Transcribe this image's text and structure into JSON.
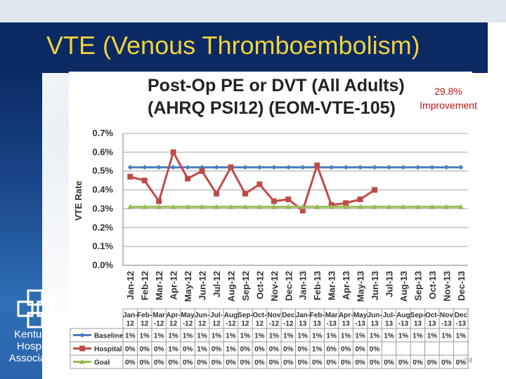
{
  "slide": {
    "title": "VTE (Venous Thromboembolism)",
    "page_number": "24",
    "org_name_lines": [
      "Kentucky",
      "Hospital",
      "Association"
    ],
    "annotation": {
      "line1": "29.8%",
      "line2": "Improvement",
      "color": "#c01515"
    },
    "colors": {
      "title": "#f2d23a",
      "title_bar": "#0b2a63"
    }
  },
  "chart_data": {
    "type": "line",
    "title_lines": [
      "Post-Op PE or DVT (All Adults)",
      "(AHRQ PSI12) (EOM-VTE-105)"
    ],
    "xlabel": "",
    "ylabel": "VTE Rate",
    "ylim": [
      0,
      0.7
    ],
    "y_ticks": [
      "0.0%",
      "0.1%",
      "0.2%",
      "0.3%",
      "0.4%",
      "0.5%",
      "0.6%",
      "0.7%"
    ],
    "grid": true,
    "legend_placement": "data-table-below",
    "categories": [
      "Jan-12",
      "Feb-12",
      "Mar-12",
      "Apr-12",
      "May-12",
      "Jun-12",
      "Jul-12",
      "Aug-12",
      "Sep-12",
      "Oct-12",
      "Nov-12",
      "Dec-12",
      "Jan-13",
      "Feb-13",
      "Mar-13",
      "Apr-13",
      "May-13",
      "Jun-13",
      "Jul-13",
      "Aug-13",
      "Sep-13",
      "Oct-13",
      "Nov-13",
      "Dec-13"
    ],
    "table_headers": [
      [
        "Jan-",
        "12"
      ],
      [
        "Feb-",
        "12"
      ],
      [
        "Mar",
        "-12"
      ],
      [
        "Apr-",
        "12"
      ],
      [
        "May",
        "-12"
      ],
      [
        "Jun-",
        "12"
      ],
      [
        "Jul-",
        "12"
      ],
      [
        "Aug",
        "-12"
      ],
      [
        "Sep-",
        "12"
      ],
      [
        "Oct-",
        "12"
      ],
      [
        "Nov",
        "-12"
      ],
      [
        "Dec",
        "-12"
      ],
      [
        "Jan-",
        "13"
      ],
      [
        "Feb-",
        "13"
      ],
      [
        "Mar",
        "-13"
      ],
      [
        "Apr-",
        "13"
      ],
      [
        "May",
        "-13"
      ],
      [
        "Jun-",
        "13"
      ],
      [
        "Jul-",
        "13"
      ],
      [
        "Aug",
        "-13"
      ],
      [
        "Sep-",
        "13"
      ],
      [
        "Oct-",
        "13"
      ],
      [
        "Nov",
        "-13"
      ],
      [
        "Dec",
        "-13"
      ]
    ],
    "series": [
      {
        "name": "Baseline",
        "color": "#4a7ebb",
        "marker": "diamond",
        "values": [
          0.52,
          0.52,
          0.52,
          0.52,
          0.52,
          0.52,
          0.52,
          0.52,
          0.52,
          0.52,
          0.52,
          0.52,
          0.52,
          0.52,
          0.52,
          0.52,
          0.52,
          0.52,
          0.52,
          0.52,
          0.52,
          0.52,
          0.52,
          0.52
        ],
        "table_values": [
          "1%",
          "1%",
          "1%",
          "1%",
          "1%",
          "1%",
          "1%",
          "1%",
          "1%",
          "1%",
          "1%",
          "1%",
          "1%",
          "1%",
          "1%",
          "1%",
          "1%",
          "1%",
          "1%",
          "1%",
          "1%",
          "1%",
          "1%",
          "1%"
        ]
      },
      {
        "name": "Hospital",
        "color": "#be4b48",
        "marker": "square",
        "values": [
          0.47,
          0.45,
          0.34,
          0.6,
          0.46,
          0.5,
          0.38,
          0.52,
          0.38,
          0.43,
          0.34,
          0.35,
          0.29,
          0.53,
          0.32,
          0.33,
          0.35,
          0.4,
          null,
          null,
          null,
          null,
          null,
          null
        ],
        "table_values": [
          "0%",
          "0%",
          "0%",
          "1%",
          "0%",
          "1%",
          "0%",
          "1%",
          "0%",
          "0%",
          "0%",
          "0%",
          "0%",
          "1%",
          "0%",
          "0%",
          "0%",
          "0%",
          "",
          "",
          "",
          "",
          "",
          ""
        ]
      },
      {
        "name": "Goal",
        "color": "#98b954",
        "marker": "triangle",
        "values": [
          0.31,
          0.31,
          0.31,
          0.31,
          0.31,
          0.31,
          0.31,
          0.31,
          0.31,
          0.31,
          0.31,
          0.31,
          0.31,
          0.31,
          0.31,
          0.31,
          0.31,
          0.31,
          0.31,
          0.31,
          0.31,
          0.31,
          0.31,
          0.31
        ],
        "table_values": [
          "0%",
          "0%",
          "0%",
          "0%",
          "0%",
          "0%",
          "0%",
          "0%",
          "0%",
          "0%",
          "0%",
          "0%",
          "0%",
          "0%",
          "0%",
          "0%",
          "0%",
          "0%",
          "0%",
          "0%",
          "0%",
          "0%",
          "0%",
          "0%"
        ]
      }
    ]
  }
}
